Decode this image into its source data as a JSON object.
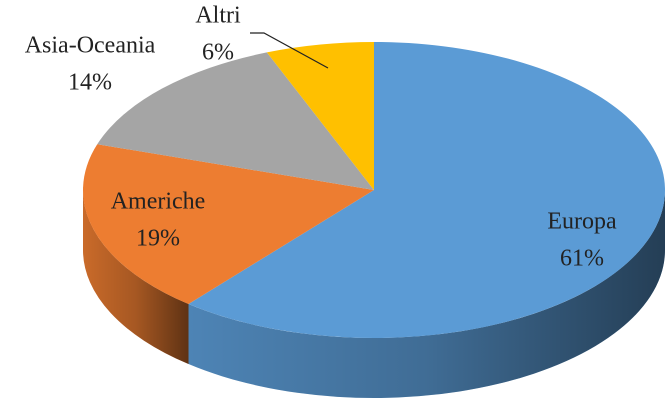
{
  "chart_data": {
    "type": "pie",
    "categories": [
      "Europa",
      "Americhe",
      "Asia-Oceania",
      "Altri"
    ],
    "values": [
      61,
      19,
      14,
      6
    ],
    "value_labels": [
      "61%",
      "19%",
      "14%",
      "6%"
    ],
    "colors": [
      "#5b9bd5",
      "#ed7d31",
      "#a5a5a5",
      "#ffc000"
    ]
  }
}
